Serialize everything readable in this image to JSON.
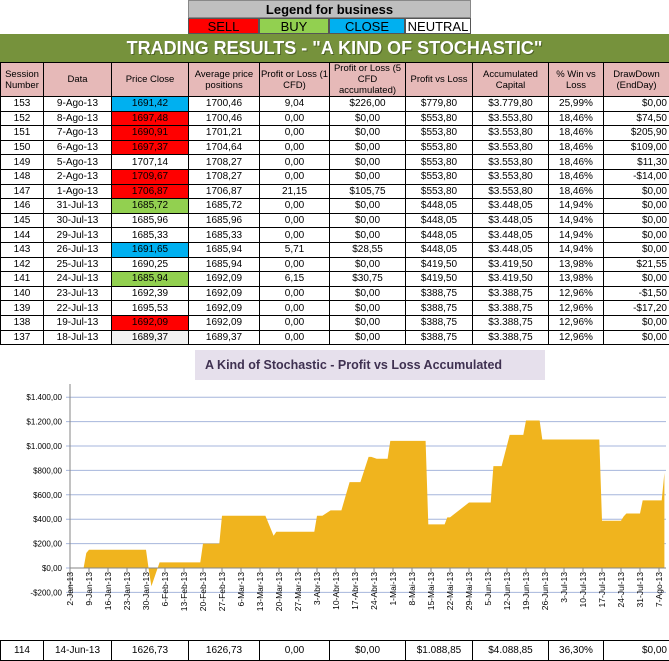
{
  "legend": {
    "title": "Legend for business",
    "items": [
      {
        "label": "SELL",
        "color": "#ff0000"
      },
      {
        "label": "BUY",
        "color": "#92d050"
      },
      {
        "label": "CLOSE",
        "color": "#00b0f0"
      },
      {
        "label": "NEUTRAL",
        "color": "#ffffff"
      }
    ]
  },
  "banner": "TRADING RESULTS - \"A KIND OF STOCHASTIC\"",
  "columns": [
    "Session Number",
    "Data",
    "Price Close",
    "Average price positions",
    "Profit or Loss (1 CFD)",
    "Profit or Loss (5 CFD accumulated)",
    "Profit vs Loss",
    "Accumulated Capital",
    "% Win vs Loss",
    "DrawDown (EndDay)"
  ],
  "rows": [
    [
      "153",
      "9-Ago-13",
      "1691,42",
      "1700,46",
      "9,04",
      "$226,00",
      "$779,80",
      "$3.779,80",
      "25,99%",
      "$0,00",
      "close"
    ],
    [
      "152",
      "8-Ago-13",
      "1697,48",
      "1700,46",
      "0,00",
      "$0,00",
      "$553,80",
      "$3.553,80",
      "18,46%",
      "$74,50",
      "sell"
    ],
    [
      "151",
      "7-Ago-13",
      "1690,91",
      "1701,21",
      "0,00",
      "$0,00",
      "$553,80",
      "$3.553,80",
      "18,46%",
      "$205,90",
      "sell"
    ],
    [
      "150",
      "6-Ago-13",
      "1697,37",
      "1704,64",
      "0,00",
      "$0,00",
      "$553,80",
      "$3.553,80",
      "18,46%",
      "$109,00",
      "sell"
    ],
    [
      "149",
      "5-Ago-13",
      "1707,14",
      "1708,27",
      "0,00",
      "$0,00",
      "$553,80",
      "$3.553,80",
      "18,46%",
      "$11,30",
      ""
    ],
    [
      "148",
      "2-Ago-13",
      "1709,67",
      "1708,27",
      "0,00",
      "$0,00",
      "$553,80",
      "$3.553,80",
      "18,46%",
      "-$14,00",
      "sell"
    ],
    [
      "147",
      "1-Ago-13",
      "1706,87",
      "1706,87",
      "21,15",
      "$105,75",
      "$553,80",
      "$3.553,80",
      "18,46%",
      "$0,00",
      "sell"
    ],
    [
      "146",
      "31-Jul-13",
      "1685,72",
      "1685,72",
      "0,00",
      "$0,00",
      "$448,05",
      "$3.448,05",
      "14,94%",
      "$0,00",
      "buy"
    ],
    [
      "145",
      "30-Jul-13",
      "1685,96",
      "1685,96",
      "0,00",
      "$0,00",
      "$448,05",
      "$3.448,05",
      "14,94%",
      "$0,00",
      ""
    ],
    [
      "144",
      "29-Jul-13",
      "1685,33",
      "1685,33",
      "0,00",
      "$0,00",
      "$448,05",
      "$3.448,05",
      "14,94%",
      "$0,00",
      ""
    ],
    [
      "143",
      "26-Jul-13",
      "1691,65",
      "1685,94",
      "5,71",
      "$28,55",
      "$448,05",
      "$3.448,05",
      "14,94%",
      "$0,00",
      "close"
    ],
    [
      "142",
      "25-Jul-13",
      "1690,25",
      "1685,94",
      "0,00",
      "$0,00",
      "$419,50",
      "$3.419,50",
      "13,98%",
      "$21,55",
      ""
    ],
    [
      "141",
      "24-Jul-13",
      "1685,94",
      "1692,09",
      "6,15",
      "$30,75",
      "$419,50",
      "$3.419,50",
      "13,98%",
      "$0,00",
      "buy"
    ],
    [
      "140",
      "23-Jul-13",
      "1692,39",
      "1692,09",
      "0,00",
      "$0,00",
      "$388,75",
      "$3.388,75",
      "12,96%",
      "-$1,50",
      ""
    ],
    [
      "139",
      "22-Jul-13",
      "1695,53",
      "1692,09",
      "0,00",
      "$0,00",
      "$388,75",
      "$3.388,75",
      "12,96%",
      "-$17,20",
      ""
    ],
    [
      "138",
      "19-Jul-13",
      "1692,09",
      "1692,09",
      "0,00",
      "$0,00",
      "$388,75",
      "$3.388,75",
      "12,96%",
      "$0,00",
      "sell"
    ],
    [
      "137",
      "18-Jul-13",
      "1689,37",
      "1689,37",
      "0,00",
      "$0,00",
      "$388,75",
      "$3.388,75",
      "12,96%",
      "$0,00",
      "gray"
    ]
  ],
  "bottom_row": [
    "114",
    "14-Jun-13",
    "1626,73",
    "1626,73",
    "0,00",
    "$0,00",
    "$1.088,85",
    "$4.088,85",
    "36,30%",
    "$0,00"
  ],
  "chart_data": {
    "type": "area",
    "title": "A Kind of Stochastic - Profit vs Loss Accumulated",
    "color": "#f0b41e",
    "ylim": [
      -200,
      1400
    ],
    "yticks": [
      -200,
      0,
      200,
      400,
      600,
      800,
      1000,
      1200,
      1400
    ],
    "ytick_labels": [
      "-$200,00",
      "$0,00",
      "$200,00",
      "$400,00",
      "$600,00",
      "$800,00",
      "$1.000,00",
      "$1.200,00",
      "$1.400,00"
    ],
    "xtick_labels": [
      "2-Jan-13",
      "9-Jan-13",
      "16-Jan-13",
      "23-Jan-13",
      "30-Jan-13",
      "6-Feb-13",
      "13-Feb-13",
      "20-Feb-13",
      "27-Feb-13",
      "6-Mar-13",
      "13-Mar-13",
      "20-Mar-13",
      "27-Mar-13",
      "3-Abr-13",
      "10-Abr-13",
      "17-Abr-13",
      "24-Abr-13",
      "1-Mai-13",
      "8-Mai-13",
      "15-Mai-13",
      "22-Mai-13",
      "29-Mai-13",
      "5-Jun-13",
      "12-Jun-13",
      "19-Jun-13",
      "26-Jun-13",
      "3-Jul-13",
      "10-Jul-13",
      "17-Jul-13",
      "24-Jul-13",
      "31-Jul-13",
      "7-Ago-13"
    ],
    "grid": true,
    "points": [
      [
        "2013-01-02",
        0
      ],
      [
        "2013-01-07",
        0
      ],
      [
        "2013-01-08",
        123
      ],
      [
        "2013-01-09",
        150
      ],
      [
        "2013-01-30",
        150
      ],
      [
        "2013-01-31",
        -10
      ],
      [
        "2013-02-01",
        -150
      ],
      [
        "2013-02-04",
        46
      ],
      [
        "2013-02-19",
        46
      ],
      [
        "2013-02-20",
        200
      ],
      [
        "2013-02-26",
        200
      ],
      [
        "2013-02-27",
        428
      ],
      [
        "2013-03-15",
        428
      ],
      [
        "2013-03-18",
        265
      ],
      [
        "2013-03-19",
        297
      ],
      [
        "2013-04-02",
        297
      ],
      [
        "2013-04-03",
        428
      ],
      [
        "2013-04-05",
        428
      ],
      [
        "2013-04-08",
        472
      ],
      [
        "2013-04-12",
        472
      ],
      [
        "2013-04-15",
        704
      ],
      [
        "2013-04-19",
        704
      ],
      [
        "2013-04-22",
        911
      ],
      [
        "2013-04-23",
        911
      ],
      [
        "2013-04-25",
        895
      ],
      [
        "2013-04-29",
        895
      ],
      [
        "2013-04-30",
        1042
      ],
      [
        "2013-05-13",
        1042
      ],
      [
        "2013-05-14",
        357
      ],
      [
        "2013-05-20",
        357
      ],
      [
        "2013-05-21",
        415
      ],
      [
        "2013-05-22",
        415
      ],
      [
        "2013-05-29",
        537
      ],
      [
        "2013-06-06",
        537
      ],
      [
        "2013-06-07",
        835
      ],
      [
        "2013-06-10",
        835
      ],
      [
        "2013-06-11",
        920
      ],
      [
        "2013-06-13",
        1091
      ],
      [
        "2013-06-18",
        1091
      ],
      [
        "2013-06-19",
        1209
      ],
      [
        "2013-06-24",
        1209
      ],
      [
        "2013-06-25",
        1053
      ],
      [
        "2013-07-16",
        1053
      ],
      [
        "2013-07-17",
        387
      ],
      [
        "2013-07-24",
        387
      ],
      [
        "2013-07-25",
        423
      ],
      [
        "2013-07-26",
        447
      ],
      [
        "2013-07-31",
        447
      ],
      [
        "2013-08-01",
        554
      ],
      [
        "2013-08-08",
        554
      ],
      [
        "2013-08-09",
        779.8
      ]
    ]
  }
}
